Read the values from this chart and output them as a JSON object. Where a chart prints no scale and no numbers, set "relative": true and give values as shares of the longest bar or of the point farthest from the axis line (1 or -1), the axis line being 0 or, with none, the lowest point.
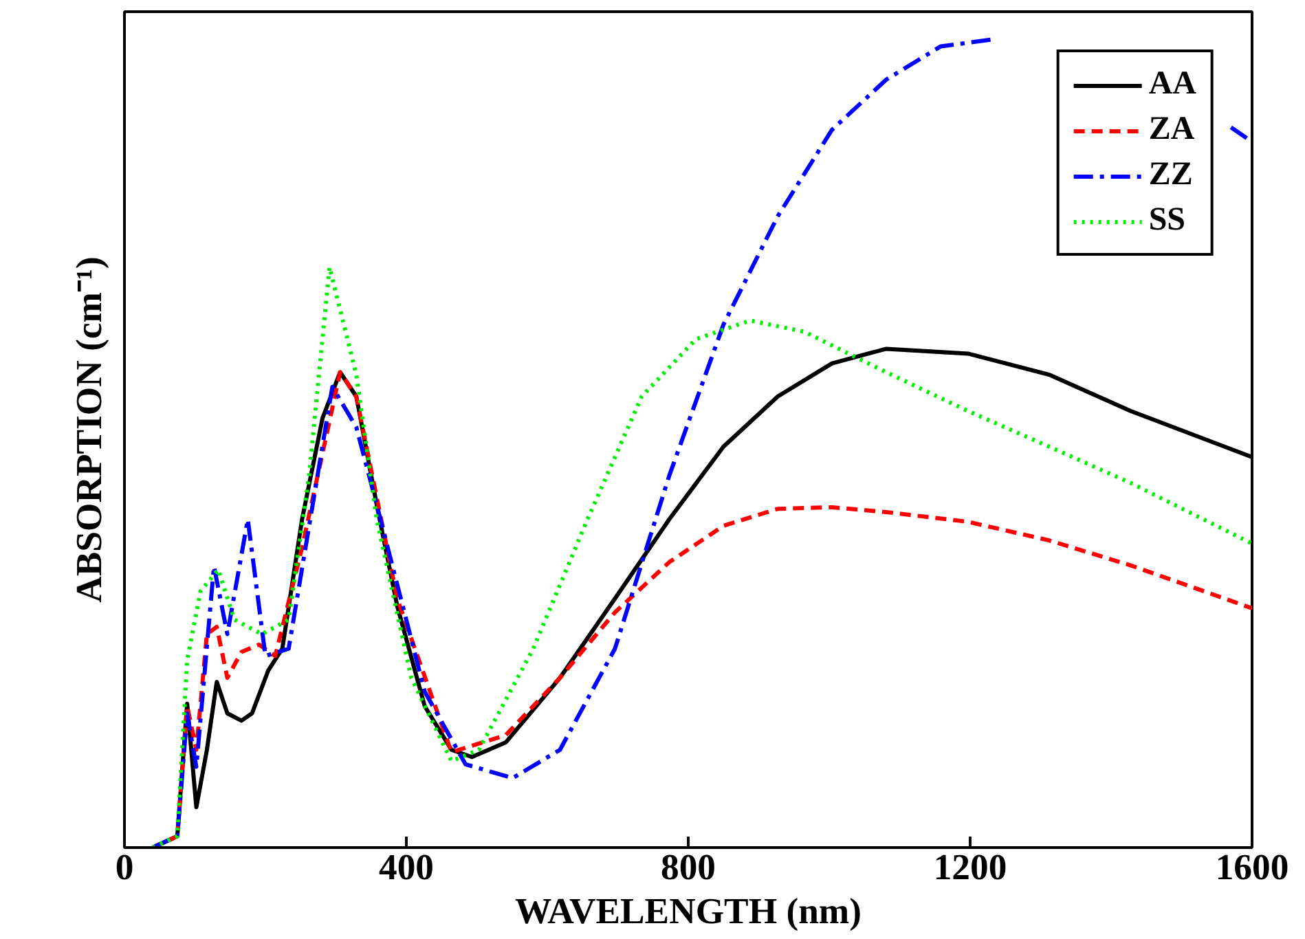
{
  "chart_data": {
    "type": "line",
    "relative": true,
    "xlabel": "WAVELENGTH (nm)",
    "ylabel": "ABSORPTION (cm⁻¹)",
    "xlim": [
      0,
      1600
    ],
    "xticks": [
      0,
      400,
      800,
      1200,
      1600
    ],
    "grid": false,
    "legend": "top right",
    "marker": "none",
    "tick_labels": "x",
    "series": [
      {
        "name": "AA",
        "color": "#000000",
        "line_style": "solid",
        "x": [
          40,
          75,
          89,
          102,
          117,
          131,
          146,
          166,
          181,
          204,
          224,
          252,
          281,
          306,
          329,
          358,
          387,
          426,
          464,
          493,
          541,
          618,
          696,
          773,
          850,
          927,
          1004,
          1081,
          1197,
          1312,
          1428,
          1600
        ],
        "values": [
          0,
          0.014,
          0.178,
          0.05,
          0.121,
          0.205,
          0.166,
          0.157,
          0.166,
          0.219,
          0.246,
          0.406,
          0.531,
          0.588,
          0.558,
          0.424,
          0.299,
          0.175,
          0.121,
          0.112,
          0.13,
          0.21,
          0.308,
          0.406,
          0.496,
          0.558,
          0.599,
          0.617,
          0.611,
          0.585,
          0.54,
          0.483
        ]
      },
      {
        "name": "ZA",
        "color": "#ff0000",
        "line_style": "dashed",
        "x": [
          40,
          75,
          89,
          102,
          117,
          131,
          146,
          166,
          191,
          214,
          252,
          306,
          329,
          387,
          464,
          541,
          618,
          696,
          773,
          850,
          927,
          1004,
          1081,
          1197,
          1312,
          1428,
          1600
        ],
        "values": [
          0,
          0.014,
          0.175,
          0.121,
          0.264,
          0.273,
          0.21,
          0.242,
          0.251,
          0.237,
          0.371,
          0.588,
          0.558,
          0.308,
          0.118,
          0.139,
          0.21,
          0.291,
          0.353,
          0.398,
          0.419,
          0.421,
          0.415,
          0.403,
          0.38,
          0.349,
          0.296
        ]
      },
      {
        "name": "ZZ",
        "color": "#0000ff",
        "line_style": "dashdot",
        "x": [
          40,
          75,
          89,
          102,
          127,
          146,
          175,
          200,
          233,
          295,
          329,
          358,
          426,
          484,
          551,
          618,
          696,
          773,
          850,
          927,
          1004,
          1081,
          1158,
          1235,
          1312,
          1428,
          1543,
          1570,
          1600
        ],
        "values": [
          0,
          0.014,
          0.166,
          0.1,
          0.348,
          0.264,
          0.406,
          0.237,
          0.246,
          0.57,
          0.52,
          0.424,
          0.193,
          0.103,
          0.086,
          0.121,
          0.246,
          0.46,
          0.647,
          0.781,
          0.888,
          0.95,
          0.991,
          1.0,
          null,
          null,
          null,
          0.891,
          0.873
        ]
      },
      {
        "name": "SS",
        "color": "#00ee00",
        "line_style": "dotted",
        "x": [
          40,
          75,
          89,
          108,
          133,
          156,
          195,
          233,
          262,
          291,
          329,
          358,
          407,
          464,
          503,
          580,
          657,
          734,
          811,
          888,
          965,
          1081,
          1197,
          1312,
          1428,
          1600
        ],
        "values": [
          0,
          0.014,
          0.232,
          0.317,
          0.344,
          0.282,
          0.264,
          0.282,
          0.46,
          0.718,
          0.585,
          0.406,
          0.21,
          0.107,
          0.121,
          0.246,
          0.406,
          0.558,
          0.629,
          0.652,
          0.638,
          0.588,
          0.54,
          0.496,
          0.451,
          0.376
        ]
      }
    ]
  }
}
